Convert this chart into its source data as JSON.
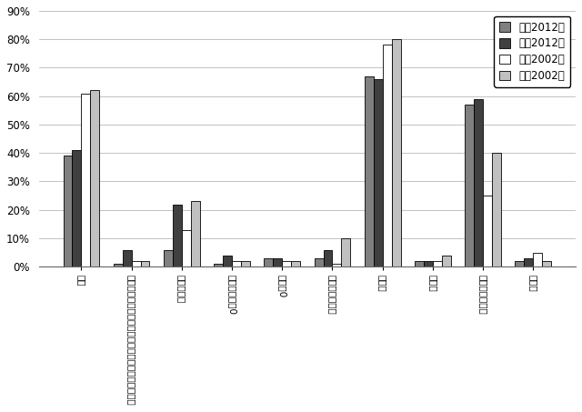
{
  "categories": [
    "新聞",
    "岩波「科学」、丸善「パリティ」、日経サイエンス",
    "ニュートン",
    "その他月刑訔0",
    "週刊訔0",
    "一般向け啓蒙書",
    "テレビ",
    "ラジオ",
    "インターネット",
    "その他"
  ],
  "series": [
    {
      "label": "文瑲2012年",
      "color": "#808080",
      "values": [
        39,
        1,
        6,
        1,
        3,
        3,
        67,
        2,
        57,
        2
      ]
    },
    {
      "label": "理工2012年",
      "color": "#404040",
      "values": [
        41,
        6,
        22,
        4,
        3,
        6,
        66,
        2,
        59,
        3
      ]
    },
    {
      "label": "文瑲2002年",
      "color": "#ffffff",
      "values": [
        61,
        2,
        13,
        2,
        2,
        1,
        78,
        2,
        25,
        5
      ]
    },
    {
      "label": "理工2002年",
      "color": "#c0c0c0",
      "values": [
        62,
        2,
        23,
        2,
        2,
        10,
        80,
        4,
        40,
        2
      ]
    }
  ],
  "ylim": [
    0,
    90
  ],
  "yticks": [
    0,
    10,
    20,
    30,
    40,
    50,
    60,
    70,
    80,
    90
  ],
  "background_color": "#ffffff",
  "bar_edge_color": "#000000",
  "grid_color": "#aaaaaa",
  "bar_width": 0.18,
  "legend_fontsize": 8.5,
  "tick_fontsize": 7.5,
  "ytick_fontsize": 8.5
}
